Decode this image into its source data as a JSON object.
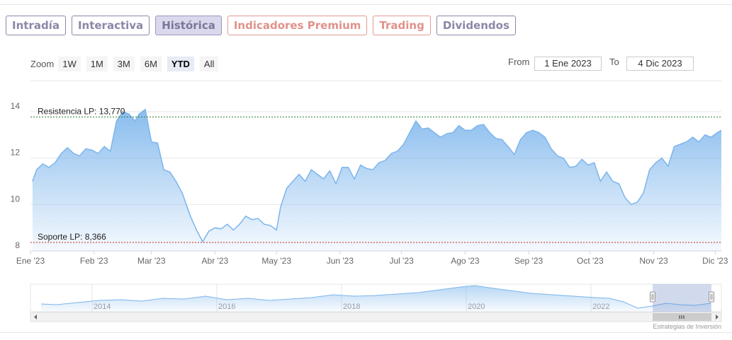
{
  "tabs": [
    {
      "label": "Intradía",
      "state": "normal"
    },
    {
      "label": "Interactiva",
      "state": "normal"
    },
    {
      "label": "Histórica",
      "state": "active"
    },
    {
      "label": "Indicadores Premium",
      "state": "premium"
    },
    {
      "label": "Trading",
      "state": "premium"
    },
    {
      "label": "Dividendos",
      "state": "normal"
    }
  ],
  "zoom": {
    "label": "Zoom",
    "buttons": [
      "1W",
      "1M",
      "3M",
      "6M",
      "YTD",
      "All"
    ],
    "selected": "YTD"
  },
  "range": {
    "from_label": "From",
    "from_value": "1 Ene 2023",
    "to_label": "To",
    "to_value": "4 Dic 2023"
  },
  "credit": "Estrategias de Inversión",
  "colors": {
    "series_line": "#7cb5ec",
    "resistance_line": "#2e7d32",
    "support_line": "#c62828"
  },
  "chart_data": {
    "type": "area",
    "title": "",
    "xlabel": "",
    "ylabel": "",
    "ylim": [
      8,
      14
    ],
    "yticks": [
      8,
      10,
      12,
      14
    ],
    "xlim": [
      "2023-01-01",
      "2023-12-04"
    ],
    "xticks": [
      {
        "date": "2023-01-01",
        "label": "Ene '23"
      },
      {
        "date": "2023-02-01",
        "label": "Feb '23"
      },
      {
        "date": "2023-03-01",
        "label": "Mar '23"
      },
      {
        "date": "2023-04-01",
        "label": "Abr '23"
      },
      {
        "date": "2023-05-01",
        "label": "May '23"
      },
      {
        "date": "2023-06-01",
        "label": "Jun '23"
      },
      {
        "date": "2023-07-01",
        "label": "Jul '23"
      },
      {
        "date": "2023-08-01",
        "label": "Ago '23"
      },
      {
        "date": "2023-09-01",
        "label": "Sep '23"
      },
      {
        "date": "2023-10-01",
        "label": "Oct '23"
      },
      {
        "date": "2023-11-01",
        "label": "Nov '23"
      },
      {
        "date": "2023-12-01",
        "label": "Dic '23"
      }
    ],
    "grid": true,
    "legend": "none",
    "series": [
      {
        "x": [
          "2023-01-02",
          "2023-01-04",
          "2023-01-07",
          "2023-01-10",
          "2023-01-13",
          "2023-01-16",
          "2023-01-19",
          "2023-01-22",
          "2023-01-25",
          "2023-01-28",
          "2023-01-31",
          "2023-02-03",
          "2023-02-06",
          "2023-02-09",
          "2023-02-12",
          "2023-02-15",
          "2023-02-18",
          "2023-02-21",
          "2023-02-23",
          "2023-02-26",
          "2023-03-01",
          "2023-03-04",
          "2023-03-07",
          "2023-03-10",
          "2023-03-13",
          "2023-03-16",
          "2023-03-18",
          "2023-03-20",
          "2023-03-23",
          "2023-03-26",
          "2023-03-29",
          "2023-04-01",
          "2023-04-04",
          "2023-04-07",
          "2023-04-10",
          "2023-04-13",
          "2023-04-16",
          "2023-04-19",
          "2023-04-22",
          "2023-04-25",
          "2023-04-28",
          "2023-05-01",
          "2023-05-03",
          "2023-05-06",
          "2023-05-09",
          "2023-05-12",
          "2023-05-15",
          "2023-05-18",
          "2023-05-21",
          "2023-05-24",
          "2023-05-27",
          "2023-05-30",
          "2023-06-02",
          "2023-06-05",
          "2023-06-08",
          "2023-06-11",
          "2023-06-14",
          "2023-06-17",
          "2023-06-20",
          "2023-06-23",
          "2023-06-26",
          "2023-06-29",
          "2023-07-02",
          "2023-07-05",
          "2023-07-08",
          "2023-07-11",
          "2023-07-14",
          "2023-07-17",
          "2023-07-20",
          "2023-07-23",
          "2023-07-26",
          "2023-07-29",
          "2023-08-01",
          "2023-08-04",
          "2023-08-07",
          "2023-08-10",
          "2023-08-13",
          "2023-08-16",
          "2023-08-19",
          "2023-08-22",
          "2023-08-25",
          "2023-08-28",
          "2023-08-31",
          "2023-09-03",
          "2023-09-06",
          "2023-09-09",
          "2023-09-12",
          "2023-09-15",
          "2023-09-18",
          "2023-09-21",
          "2023-09-24",
          "2023-09-27",
          "2023-09-30",
          "2023-10-03",
          "2023-10-06",
          "2023-10-09",
          "2023-10-12",
          "2023-10-15",
          "2023-10-18",
          "2023-10-21",
          "2023-10-24",
          "2023-10-27",
          "2023-10-30",
          "2023-11-02",
          "2023-11-05",
          "2023-11-08",
          "2023-11-11",
          "2023-11-14",
          "2023-11-17",
          "2023-11-20",
          "2023-11-23",
          "2023-11-26",
          "2023-11-29",
          "2023-12-02",
          "2023-12-04"
        ],
        "values": [
          11.0,
          11.5,
          11.75,
          11.6,
          11.8,
          12.2,
          12.45,
          12.2,
          12.1,
          12.4,
          12.35,
          12.2,
          12.5,
          12.3,
          13.6,
          14.0,
          13.9,
          13.6,
          13.9,
          14.1,
          12.7,
          12.65,
          11.5,
          11.4,
          11.0,
          10.5,
          10.0,
          9.5,
          8.9,
          8.4,
          8.85,
          9.0,
          8.95,
          9.15,
          8.9,
          9.15,
          9.5,
          9.35,
          9.4,
          9.15,
          9.1,
          8.9,
          9.9,
          10.7,
          11.0,
          11.3,
          11.0,
          11.5,
          11.3,
          11.1,
          11.45,
          10.9,
          11.6,
          11.6,
          11.1,
          11.7,
          11.55,
          11.5,
          11.8,
          11.9,
          12.2,
          12.3,
          12.6,
          13.1,
          13.6,
          13.25,
          13.3,
          13.1,
          12.9,
          13.05,
          13.1,
          13.4,
          13.2,
          13.2,
          13.4,
          13.45,
          13.1,
          12.85,
          12.8,
          12.5,
          12.15,
          12.8,
          13.1,
          13.2,
          13.1,
          12.9,
          12.4,
          12.1,
          12.0,
          11.6,
          11.65,
          11.95,
          11.7,
          11.8,
          11.0,
          11.4,
          11.0,
          10.9,
          10.3,
          10.0,
          10.1,
          10.5,
          11.5,
          11.8,
          12.0,
          11.65,
          12.5,
          12.6,
          12.7,
          12.9,
          12.7,
          13.0,
          12.9,
          13.1,
          13.2
        ],
        "annotations": [
          {
            "type": "hline",
            "value": 13.77,
            "label": "Resistencia LP: 13,770",
            "color": "#2e7d32"
          },
          {
            "type": "hline",
            "value": 8.366,
            "label": "Soporte LP: 8,366",
            "color": "#c62828"
          }
        ]
      }
    ],
    "navigator": {
      "xticks": [
        "2014",
        "2016",
        "2018",
        "2020",
        "2022"
      ]
    }
  }
}
